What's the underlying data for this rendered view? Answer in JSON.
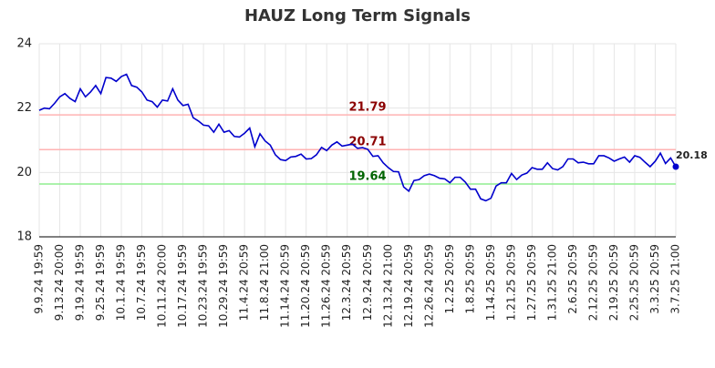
{
  "chart_data": {
    "type": "line",
    "title": "HAUZ Long Term Signals",
    "categories": [
      "9.9.24 19:59",
      null,
      null,
      null,
      "9.13.24 20:00",
      null,
      null,
      null,
      "9.19.24 19:59",
      null,
      null,
      null,
      "9.25.24 19:59",
      null,
      null,
      null,
      "10.1.24 19:59",
      null,
      null,
      null,
      "10.7.24 19:59",
      null,
      null,
      null,
      "10.11.24 20:00",
      null,
      null,
      null,
      "10.17.24 19:59",
      null,
      null,
      null,
      "10.23.24 19:59",
      null,
      null,
      null,
      "10.29.24 19:59",
      null,
      null,
      null,
      "11.4.24 20:59",
      null,
      null,
      null,
      "11.8.24 21:00",
      null,
      null,
      null,
      "11.14.24 20:59",
      null,
      null,
      null,
      "11.20.24 20:59",
      null,
      null,
      null,
      "11.26.24 20:59",
      null,
      null,
      null,
      "12.3.24 20:59",
      null,
      null,
      null,
      "12.9.24 20:59",
      null,
      null,
      null,
      "12.13.24 21:00",
      null,
      null,
      null,
      "12.19.24 20:59",
      null,
      null,
      null,
      "12.26.24 20:59",
      null,
      null,
      null,
      "1.2.25 20:59",
      null,
      null,
      null,
      "1.8.25 20:59",
      null,
      null,
      null,
      "1.14.25 20:59",
      null,
      null,
      null,
      "1.21.25 20:59",
      null,
      null,
      null,
      "1.27.25 20:59",
      null,
      null,
      null,
      "1.31.25 21:00",
      null,
      null,
      null,
      "2.6.25 20:59",
      null,
      null,
      null,
      "2.12.25 20:59",
      null,
      null,
      null,
      "2.19.25 20:59",
      null,
      null,
      null,
      "2.25.25 20:59",
      null,
      null,
      null,
      "3.3.25 20:59",
      null,
      null,
      null,
      "3.7.25 21:00"
    ],
    "values": [
      21.93,
      22.0,
      21.98,
      22.15,
      22.35,
      22.45,
      22.3,
      22.2,
      22.6,
      22.35,
      22.5,
      22.7,
      22.45,
      22.95,
      22.93,
      22.83,
      22.98,
      23.05,
      22.7,
      22.65,
      22.5,
      22.25,
      22.2,
      22.03,
      22.25,
      22.22,
      22.6,
      22.25,
      22.08,
      22.12,
      21.7,
      21.6,
      21.47,
      21.45,
      21.25,
      21.5,
      21.25,
      21.3,
      21.12,
      21.1,
      21.22,
      21.38,
      20.8,
      21.2,
      20.98,
      20.85,
      20.55,
      20.4,
      20.37,
      20.48,
      20.5,
      20.57,
      20.42,
      20.43,
      20.55,
      20.78,
      20.68,
      20.85,
      20.95,
      20.82,
      20.85,
      20.88,
      20.75,
      20.77,
      20.72,
      20.5,
      20.52,
      20.3,
      20.15,
      20.03,
      20.02,
      19.55,
      19.42,
      19.75,
      19.78,
      19.9,
      19.95,
      19.9,
      19.82,
      19.8,
      19.68,
      19.85,
      19.85,
      19.7,
      19.48,
      19.48,
      19.18,
      19.12,
      19.2,
      19.58,
      19.68,
      19.68,
      19.97,
      19.78,
      19.92,
      19.98,
      20.15,
      20.1,
      20.1,
      20.3,
      20.12,
      20.08,
      20.18,
      20.42,
      20.42,
      20.3,
      20.32,
      20.27,
      20.27,
      20.52,
      20.52,
      20.45,
      20.35,
      20.42,
      20.48,
      20.32,
      20.52,
      20.47,
      20.32,
      20.18,
      20.35,
      20.6,
      20.28,
      20.45,
      20.18
    ],
    "color": "#0000cc",
    "ylim": [
      18,
      24
    ],
    "yticks": [
      18,
      20,
      22,
      24
    ],
    "grid": true,
    "reference_lines": [
      {
        "value": 21.79,
        "color": "#ffb3b3",
        "label_color": "#8b0000"
      },
      {
        "value": 20.71,
        "color": "#ffb3b3",
        "label_color": "#8b0000"
      },
      {
        "value": 19.64,
        "color": "#90ee90",
        "label_color": "#006400"
      }
    ]
  }
}
